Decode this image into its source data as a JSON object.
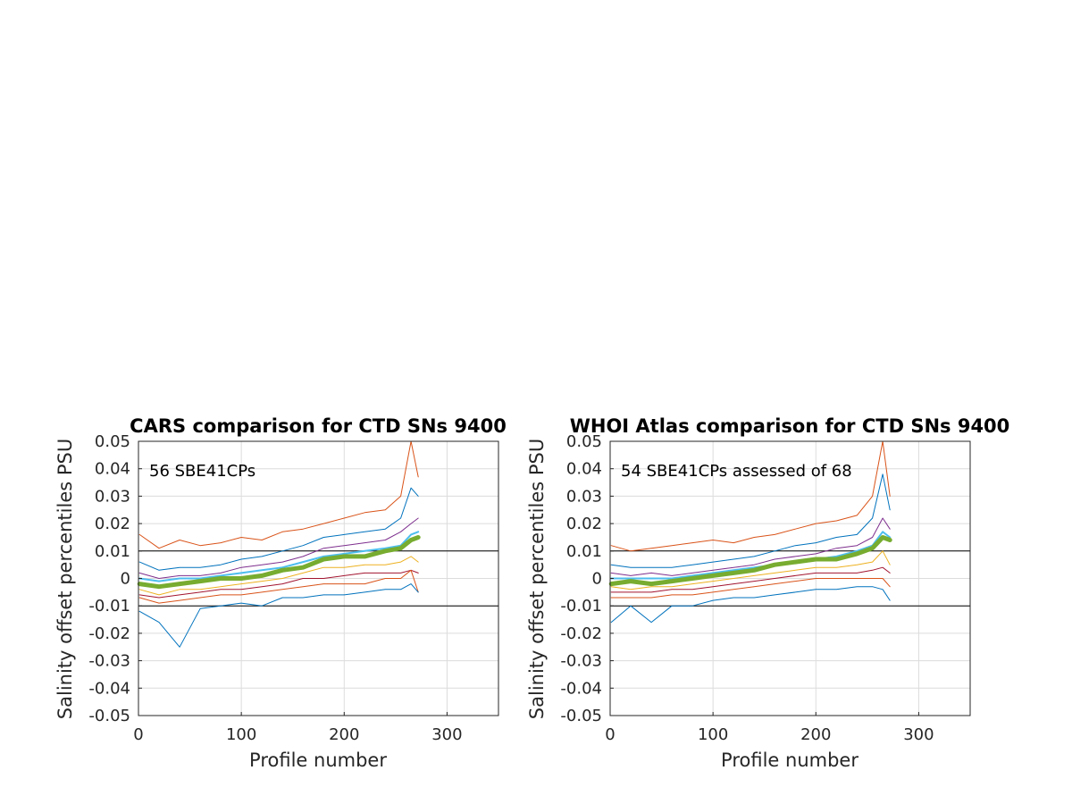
{
  "chart_data": [
    {
      "type": "line",
      "title": "CARS comparison for CTD SNs 9400",
      "xlabel": "Profile number",
      "ylabel": "Salinity offset percentiles PSU",
      "annotation": "56 SBE41CPs",
      "xlim": [
        0,
        350
      ],
      "ylim": [
        -0.05,
        0.05
      ],
      "x_ticks": [
        "0",
        "100",
        "200",
        "300"
      ],
      "y_ticks": [
        "-0.05",
        "-0.04",
        "-0.03",
        "-0.02",
        "-0.01",
        "0",
        "0.01",
        "0.02",
        "0.03",
        "0.04",
        "0.05"
      ],
      "reference_lines": [
        0.01,
        -0.01
      ],
      "grid": true,
      "x": [
        1,
        20,
        40,
        60,
        80,
        100,
        120,
        140,
        160,
        180,
        200,
        220,
        240,
        255,
        265,
        272
      ],
      "series": [
        {
          "color": "#D95319",
          "width": 1,
          "values": [
            0.016,
            0.011,
            0.014,
            0.012,
            0.013,
            0.015,
            0.014,
            0.017,
            0.018,
            0.02,
            0.022,
            0.024,
            0.025,
            0.03,
            0.05,
            0.037
          ]
        },
        {
          "color": "#0072BD",
          "width": 1,
          "values": [
            0.006,
            0.003,
            0.004,
            0.004,
            0.005,
            0.007,
            0.008,
            0.01,
            0.012,
            0.015,
            0.016,
            0.017,
            0.018,
            0.022,
            0.033,
            0.03
          ]
        },
        {
          "color": "#7E2F8E",
          "width": 1,
          "values": [
            0.002,
            0.0,
            0.001,
            0.001,
            0.002,
            0.004,
            0.005,
            0.006,
            0.008,
            0.011,
            0.012,
            0.013,
            0.014,
            0.017,
            0.02,
            0.022
          ]
        },
        {
          "color": "#4DBEEE",
          "width": 2,
          "values": [
            0.0,
            -0.001,
            0.0,
            0.0,
            0.001,
            0.002,
            0.003,
            0.004,
            0.006,
            0.008,
            0.009,
            0.01,
            0.011,
            0.012,
            0.016,
            0.017
          ]
        },
        {
          "color": "#77AC30",
          "width": 5,
          "values": [
            -0.002,
            -0.003,
            -0.002,
            -0.001,
            0.0,
            0.0,
            0.001,
            0.003,
            0.004,
            0.007,
            0.008,
            0.008,
            0.01,
            0.011,
            0.014,
            0.015
          ]
        },
        {
          "color": "#EDB120",
          "width": 1,
          "values": [
            -0.004,
            -0.006,
            -0.004,
            -0.004,
            -0.003,
            -0.002,
            -0.001,
            0.0,
            0.002,
            0.004,
            0.004,
            0.005,
            0.005,
            0.006,
            0.008,
            0.006
          ]
        },
        {
          "color": "#A2142F",
          "width": 1,
          "values": [
            -0.006,
            -0.007,
            -0.006,
            -0.005,
            -0.004,
            -0.004,
            -0.003,
            -0.002,
            0.0,
            0.0,
            0.001,
            0.002,
            0.002,
            0.002,
            0.003,
            0.002
          ]
        },
        {
          "color": "#D95319",
          "width": 1,
          "values": [
            -0.007,
            -0.009,
            -0.008,
            -0.007,
            -0.006,
            -0.006,
            -0.005,
            -0.004,
            -0.003,
            -0.002,
            -0.002,
            -0.002,
            0.0,
            0.0,
            0.003,
            -0.005
          ]
        },
        {
          "color": "#0072BD",
          "width": 1,
          "values": [
            -0.012,
            -0.016,
            -0.025,
            -0.011,
            -0.01,
            -0.009,
            -0.01,
            -0.007,
            -0.007,
            -0.006,
            -0.006,
            -0.005,
            -0.004,
            -0.004,
            -0.002,
            -0.005
          ]
        }
      ]
    },
    {
      "type": "line",
      "title": "WHOI Atlas comparison for CTD SNs 9400",
      "xlabel": "Profile number",
      "ylabel": "Salinity offset percentiles PSU",
      "annotation": "54 SBE41CPs assessed of 68",
      "xlim": [
        0,
        350
      ],
      "ylim": [
        -0.05,
        0.05
      ],
      "x_ticks": [
        "0",
        "100",
        "200",
        "300"
      ],
      "y_ticks": [
        "-0.05",
        "-0.04",
        "-0.03",
        "-0.02",
        "-0.01",
        "0",
        "0.01",
        "0.02",
        "0.03",
        "0.04",
        "0.05"
      ],
      "reference_lines": [
        0.01,
        -0.01
      ],
      "grid": true,
      "x": [
        1,
        20,
        40,
        60,
        80,
        100,
        120,
        140,
        160,
        180,
        200,
        220,
        240,
        255,
        265,
        272
      ],
      "series": [
        {
          "color": "#D95319",
          "width": 1,
          "values": [
            0.012,
            0.01,
            0.011,
            0.012,
            0.013,
            0.014,
            0.013,
            0.015,
            0.016,
            0.018,
            0.02,
            0.021,
            0.023,
            0.03,
            0.05,
            0.03
          ]
        },
        {
          "color": "#0072BD",
          "width": 1,
          "values": [
            0.005,
            0.004,
            0.004,
            0.004,
            0.005,
            0.006,
            0.007,
            0.008,
            0.01,
            0.012,
            0.013,
            0.015,
            0.016,
            0.022,
            0.038,
            0.025
          ]
        },
        {
          "color": "#7E2F8E",
          "width": 1,
          "values": [
            0.002,
            0.001,
            0.002,
            0.001,
            0.002,
            0.003,
            0.004,
            0.005,
            0.007,
            0.008,
            0.009,
            0.011,
            0.012,
            0.015,
            0.022,
            0.018
          ]
        },
        {
          "color": "#4DBEEE",
          "width": 2,
          "values": [
            0.0,
            0.0,
            0.0,
            0.0,
            0.001,
            0.002,
            0.003,
            0.004,
            0.005,
            0.006,
            0.007,
            0.008,
            0.01,
            0.012,
            0.017,
            0.015
          ]
        },
        {
          "color": "#77AC30",
          "width": 5,
          "values": [
            -0.002,
            -0.001,
            -0.002,
            -0.001,
            0.0,
            0.001,
            0.002,
            0.003,
            0.005,
            0.006,
            0.007,
            0.007,
            0.009,
            0.011,
            0.015,
            0.014
          ]
        },
        {
          "color": "#EDB120",
          "width": 1,
          "values": [
            -0.003,
            -0.004,
            -0.003,
            -0.003,
            -0.002,
            -0.001,
            0.0,
            0.001,
            0.002,
            0.003,
            0.004,
            0.004,
            0.005,
            0.006,
            0.01,
            0.005
          ]
        },
        {
          "color": "#A2142F",
          "width": 1,
          "values": [
            -0.005,
            -0.005,
            -0.005,
            -0.004,
            -0.004,
            -0.003,
            -0.002,
            -0.001,
            0.0,
            0.001,
            0.002,
            0.002,
            0.002,
            0.003,
            0.004,
            0.002
          ]
        },
        {
          "color": "#D95319",
          "width": 1,
          "values": [
            -0.007,
            -0.007,
            -0.007,
            -0.006,
            -0.006,
            -0.005,
            -0.004,
            -0.003,
            -0.002,
            -0.001,
            0.0,
            0.0,
            0.0,
            0.0,
            0.0,
            -0.003
          ]
        },
        {
          "color": "#0072BD",
          "width": 1,
          "values": [
            -0.016,
            -0.01,
            -0.016,
            -0.01,
            -0.01,
            -0.008,
            -0.007,
            -0.007,
            -0.006,
            -0.005,
            -0.004,
            -0.004,
            -0.003,
            -0.003,
            -0.004,
            -0.008
          ]
        }
      ]
    }
  ]
}
